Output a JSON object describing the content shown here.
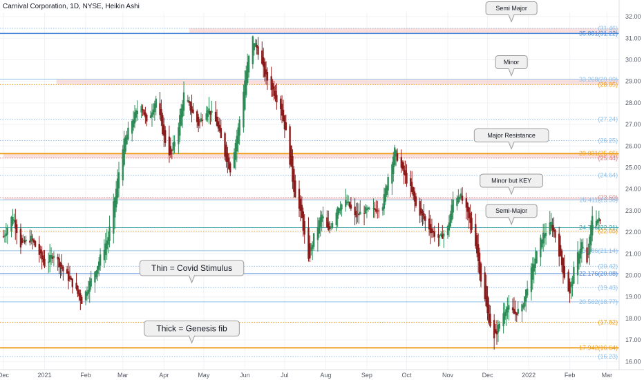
{
  "chart_data": {
    "type": "candlestick",
    "title": "Carnival Corporation, 1D, NYSE, Heikin Ashi",
    "y_range": [
      16.0,
      32.5
    ],
    "y_ticks": [
      "32.00",
      "31.00",
      "30.00",
      "29.00",
      "28.00",
      "27.00",
      "26.00",
      "25.00",
      "24.00",
      "23.00",
      "22.00",
      "21.00",
      "20.00",
      "19.00",
      "18.00",
      "17.00",
      "16.00"
    ],
    "x_range": [
      "2020-12-01",
      "2022-03-05"
    ],
    "x_ticks": [
      {
        "label": "Dec",
        "date": "2020-12-01"
      },
      {
        "label": "2021",
        "date": "2021-01-01"
      },
      {
        "label": "Feb",
        "date": "2021-02-01"
      },
      {
        "label": "Mar",
        "date": "2021-03-01"
      },
      {
        "label": "Apr",
        "date": "2021-04-01"
      },
      {
        "label": "May",
        "date": "2021-05-01"
      },
      {
        "label": "Jun",
        "date": "2021-06-01"
      },
      {
        "label": "Jul",
        "date": "2021-07-01"
      },
      {
        "label": "Aug",
        "date": "2021-08-01"
      },
      {
        "label": "Sep",
        "date": "2021-09-01"
      },
      {
        "label": "Oct",
        "date": "2021-10-01"
      },
      {
        "label": "Nov",
        "date": "2021-11-01"
      },
      {
        "label": "Dec",
        "date": "2021-12-01"
      },
      {
        "label": "2022",
        "date": "2022-01-01"
      },
      {
        "label": "Feb",
        "date": "2022-02-01"
      },
      {
        "label": "Mar",
        "date": "2022-03-01"
      }
    ],
    "colors": {
      "up": "#2e8b57",
      "down": "#8b1a1a",
      "blue": "#4a86d6",
      "lightblue": "#8fbfe8",
      "orange": "#f0a020",
      "teal": "#3aa0a0",
      "band": "#f6c5c5"
    },
    "levels": [
      {
        "value": 31.46,
        "label": "(31.46)",
        "style": "dotted",
        "color": "#8fbfe8"
      },
      {
        "value": 31.22,
        "label": "35.881(31.22)",
        "style": "solid",
        "color": "#4a86d6",
        "width": 1.5
      },
      {
        "value": 29.09,
        "label": "33.268(29.09)",
        "style": "solid",
        "color": "#8fbfe8"
      },
      {
        "value": 28.85,
        "label": "(28.85)",
        "style": "dotted",
        "color": "#f0a020"
      },
      {
        "value": 27.24,
        "label": "(27.24)",
        "style": "dotted",
        "color": "#8fbfe8"
      },
      {
        "value": 26.25,
        "label": "(26.25)",
        "style": "dotted",
        "color": "#8fbfe8"
      },
      {
        "value": 25.65,
        "label": "29.031(25.65)",
        "style": "solid",
        "color": "#f0a020",
        "width": 2
      },
      {
        "value": 25.44,
        "label": "(25.44)",
        "style": "dotted",
        "color": "#e08080"
      },
      {
        "value": 24.64,
        "label": "(24.64)",
        "style": "dotted",
        "color": "#8fbfe8"
      },
      {
        "value": 23.6,
        "label": "(23.60)",
        "style": "dotted",
        "color": "#d08080"
      },
      {
        "value": 23.5,
        "label": "26.411(23.50)",
        "style": "solid",
        "color": "#8fbfe8"
      },
      {
        "value": 22.21,
        "label": "24.796(22.21)",
        "style": "solid",
        "color": "#3aa0a0"
      },
      {
        "value": 22.05,
        "label": "(22.05)",
        "style": "dotted",
        "color": "#f0a020"
      },
      {
        "value": 21.14,
        "label": "23.486(21.14)",
        "style": "solid",
        "color": "#8fbfe8"
      },
      {
        "value": 20.42,
        "label": "(20.42)",
        "style": "dotted",
        "color": "#8fbfe8"
      },
      {
        "value": 20.08,
        "label": "22.176(20.08)",
        "style": "solid",
        "color": "#4a86d6"
      },
      {
        "value": 19.43,
        "label": "(19.43)",
        "style": "dotted",
        "color": "#8fbfe8"
      },
      {
        "value": 18.77,
        "label": "20.562(18.77)",
        "style": "solid",
        "color": "#8fbfe8"
      },
      {
        "value": 17.82,
        "label": "(17.82)",
        "style": "dotted",
        "color": "#f0a020"
      },
      {
        "value": 16.64,
        "label": "17.942(16.64)",
        "style": "solid",
        "color": "#f0a020",
        "width": 2
      },
      {
        "value": 16.23,
        "label": "(16.23)",
        "style": "dotted",
        "color": "#8fbfe8"
      }
    ],
    "zones": [
      {
        "from": 31.22,
        "to": 31.46,
        "start": "2021-04-20"
      },
      {
        "from": 28.85,
        "to": 29.09,
        "start": "2021-01-10"
      },
      {
        "from": 25.44,
        "to": 25.65,
        "start": "2020-12-01"
      },
      {
        "from": 23.5,
        "to": 23.6,
        "start": "2020-12-01"
      }
    ],
    "annotations": [
      {
        "text": "Semi Major",
        "date": "2021-12-19",
        "value": 31.7
      },
      {
        "text": "Minor",
        "date": "2021-12-19",
        "value": 29.2
      },
      {
        "text": "Major Resistance",
        "date": "2021-12-19",
        "value": 25.8
      },
      {
        "text": "Minor but KEY",
        "date": "2021-12-19",
        "value": 23.7
      },
      {
        "text": "Semi-Major",
        "date": "2021-12-19",
        "value": 22.3
      },
      {
        "text": "Thin = Covid Stimulus",
        "date": "2021-04-22",
        "value": 19.6
      },
      {
        "text": "Thick = Genesis fib",
        "date": "2021-04-22",
        "value": 16.8
      }
    ],
    "price_path": [
      [
        "2020-12-01",
        21.8
      ],
      [
        "2020-12-08",
        22.8
      ],
      [
        "2020-12-14",
        21.4
      ],
      [
        "2020-12-22",
        21.7
      ],
      [
        "2021-01-01",
        20.5
      ],
      [
        "2021-01-08",
        21.0
      ],
      [
        "2021-01-15",
        20.2
      ],
      [
        "2021-01-22",
        19.6
      ],
      [
        "2021-01-29",
        18.8
      ],
      [
        "2021-02-03",
        19.5
      ],
      [
        "2021-02-10",
        20.5
      ],
      [
        "2021-02-18",
        21.8
      ],
      [
        "2021-02-24",
        24.0
      ],
      [
        "2021-03-01",
        26.0
      ],
      [
        "2021-03-08",
        27.2
      ],
      [
        "2021-03-15",
        28.0
      ],
      [
        "2021-03-19",
        27.0
      ],
      [
        "2021-03-26",
        28.2
      ],
      [
        "2021-04-01",
        26.4
      ],
      [
        "2021-04-06",
        25.5
      ],
      [
        "2021-04-12",
        27.0
      ],
      [
        "2021-04-16",
        28.4
      ],
      [
        "2021-04-22",
        27.6
      ],
      [
        "2021-04-27",
        27.0
      ],
      [
        "2021-05-04",
        27.8
      ],
      [
        "2021-05-11",
        27.0
      ],
      [
        "2021-05-17",
        25.6
      ],
      [
        "2021-05-21",
        24.9
      ],
      [
        "2021-05-27",
        26.8
      ],
      [
        "2021-06-02",
        29.5
      ],
      [
        "2021-06-07",
        31.0
      ],
      [
        "2021-06-11",
        30.4
      ],
      [
        "2021-06-16",
        29.3
      ],
      [
        "2021-06-22",
        28.6
      ],
      [
        "2021-06-28",
        27.8
      ],
      [
        "2021-07-02",
        26.6
      ],
      [
        "2021-07-08",
        24.0
      ],
      [
        "2021-07-14",
        22.6
      ],
      [
        "2021-07-19",
        20.6
      ],
      [
        "2021-07-23",
        21.8
      ],
      [
        "2021-07-29",
        22.8
      ],
      [
        "2021-08-03",
        22.0
      ],
      [
        "2021-08-10",
        23.2
      ],
      [
        "2021-08-17",
        23.4
      ],
      [
        "2021-08-23",
        22.7
      ],
      [
        "2021-08-30",
        23.0
      ],
      [
        "2021-09-06",
        23.0
      ],
      [
        "2021-09-13",
        23.3
      ],
      [
        "2021-09-17",
        24.6
      ],
      [
        "2021-09-22",
        25.8
      ],
      [
        "2021-09-28",
        24.8
      ],
      [
        "2021-10-04",
        24.0
      ],
      [
        "2021-10-08",
        23.2
      ],
      [
        "2021-10-14",
        22.6
      ],
      [
        "2021-10-20",
        22.0
      ],
      [
        "2021-10-26",
        21.7
      ],
      [
        "2021-11-01",
        22.2
      ],
      [
        "2021-11-05",
        23.5
      ],
      [
        "2021-11-10",
        23.8
      ],
      [
        "2021-11-16",
        22.8
      ],
      [
        "2021-11-22",
        21.5
      ],
      [
        "2021-11-26",
        19.8
      ],
      [
        "2021-12-01",
        18.2
      ],
      [
        "2021-12-06",
        17.0
      ],
      [
        "2021-12-09",
        17.6
      ],
      [
        "2021-12-15",
        18.6
      ],
      [
        "2021-12-21",
        18.2
      ],
      [
        "2021-12-27",
        18.5
      ],
      [
        "2022-01-01",
        19.8
      ],
      [
        "2022-01-06",
        20.8
      ],
      [
        "2022-01-11",
        21.8
      ],
      [
        "2022-01-18",
        22.4
      ],
      [
        "2022-01-22",
        21.6
      ],
      [
        "2022-01-27",
        20.2
      ],
      [
        "2022-02-01",
        19.1
      ],
      [
        "2022-02-05",
        20.6
      ],
      [
        "2022-02-10",
        21.5
      ],
      [
        "2022-02-14",
        20.5
      ],
      [
        "2022-02-18",
        22.8
      ],
      [
        "2022-02-22",
        22.6
      ],
      [
        "2022-02-24",
        22.5
      ]
    ]
  }
}
